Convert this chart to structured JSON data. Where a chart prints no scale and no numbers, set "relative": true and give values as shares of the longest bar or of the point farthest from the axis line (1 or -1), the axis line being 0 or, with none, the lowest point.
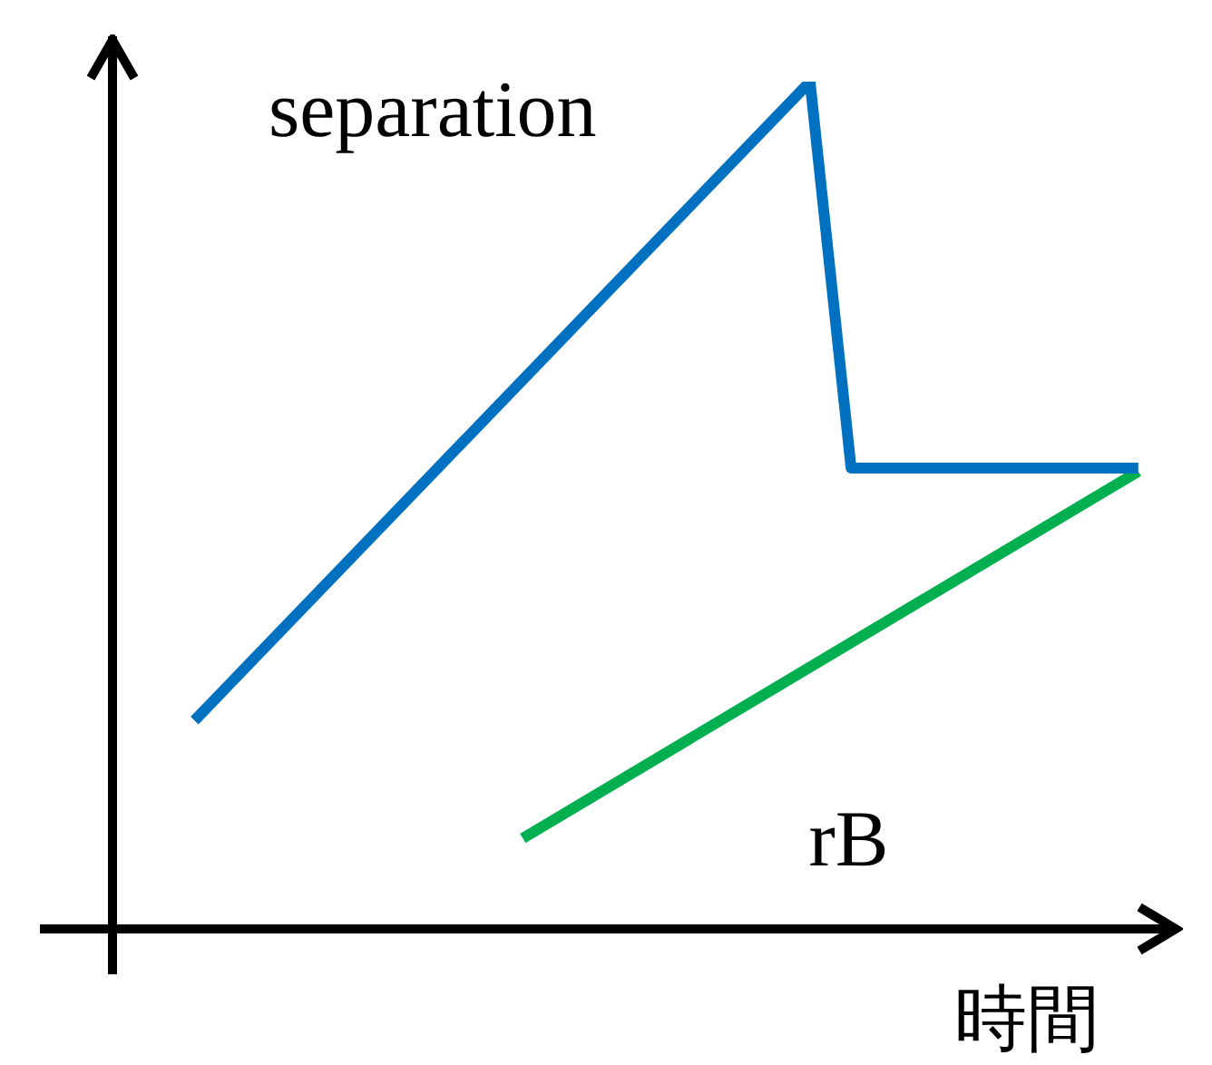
{
  "chart_data": {
    "type": "line",
    "relative": true,
    "xlabel": "時間",
    "marker": "none",
    "line_style": "solid",
    "annotations": [
      "separation",
      "rB"
    ],
    "categories": [
      null,
      null,
      null,
      null,
      null,
      null,
      null,
      null,
      null,
      null,
      null,
      null,
      null,
      null,
      null,
      null,
      null,
      null,
      null,
      null,
      null,
      null,
      null,
      null,
      null,
      null,
      null
    ],
    "series": [
      {
        "color": "#0070c0",
        "values": [
          null,
          null,
          0.246,
          null,
          null,
          null,
          null,
          null,
          null,
          null,
          null,
          null,
          null,
          null,
          null,
          null,
          null,
          1,
          0.544,
          null,
          null,
          null,
          null,
          null,
          null,
          0.544,
          null
        ]
      },
      {
        "color": "#00b050",
        "values": [
          null,
          null,
          null,
          null,
          null,
          null,
          null,
          null,
          null,
          null,
          0.107,
          null,
          null,
          null,
          null,
          null,
          null,
          null,
          null,
          null,
          null,
          null,
          null,
          null,
          null,
          0.54,
          null
        ]
      }
    ]
  }
}
